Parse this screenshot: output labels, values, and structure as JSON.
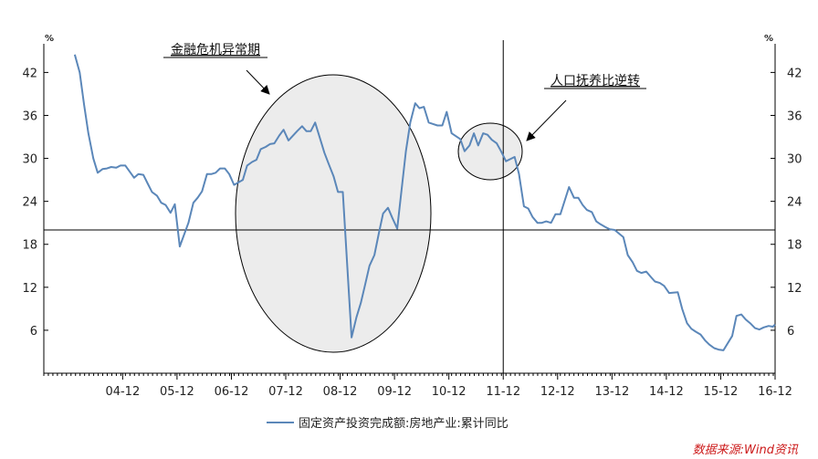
{
  "colors": {
    "series": "#5b87b9",
    "ellipse_fill": "#ececec",
    "axis": "#000000",
    "source": "#cc1a1a"
  },
  "chart_data": {
    "type": "line",
    "y_unit_left": "%",
    "y_unit_right": "%",
    "ylim": [
      0,
      46
    ],
    "yticks": [
      6,
      12,
      18,
      24,
      30,
      36,
      42
    ],
    "xlim": [
      2003.5,
      2016.95
    ],
    "x_tick_labels": [
      "04-12",
      "05-12",
      "06-12",
      "07-12",
      "08-12",
      "09-12",
      "10-12",
      "11-12",
      "12-12",
      "13-12",
      "14-12",
      "15-12",
      "16-12"
    ],
    "x_tick_positions": [
      2004.95,
      2005.95,
      2006.95,
      2007.95,
      2008.95,
      2009.95,
      2010.95,
      2011.95,
      2012.95,
      2013.95,
      2014.95,
      2015.95,
      2016.95
    ],
    "reference_lines": {
      "horizontal_y": 20,
      "vertical_x": 2011.95
    },
    "series": [
      {
        "name": "固定资产投资完成额:房地产业:累计同比",
        "points": [
          [
            2004.07,
            44.5
          ],
          [
            2004.16,
            42.0
          ],
          [
            2004.24,
            37.5
          ],
          [
            2004.32,
            33.5
          ],
          [
            2004.41,
            30.0
          ],
          [
            2004.49,
            28.0
          ],
          [
            2004.58,
            28.5
          ],
          [
            2004.66,
            28.6
          ],
          [
            2004.74,
            28.8
          ],
          [
            2004.83,
            28.7
          ],
          [
            2004.91,
            29.0
          ],
          [
            2005.0,
            29.0
          ],
          [
            2005.16,
            27.3
          ],
          [
            2005.24,
            27.8
          ],
          [
            2005.33,
            27.7
          ],
          [
            2005.41,
            26.5
          ],
          [
            2005.49,
            25.3
          ],
          [
            2005.58,
            24.8
          ],
          [
            2005.66,
            23.8
          ],
          [
            2005.74,
            23.5
          ],
          [
            2005.83,
            22.4
          ],
          [
            2005.91,
            23.6
          ],
          [
            2006.0,
            17.7
          ],
          [
            2006.16,
            21.0
          ],
          [
            2006.25,
            23.8
          ],
          [
            2006.33,
            24.5
          ],
          [
            2006.41,
            25.4
          ],
          [
            2006.5,
            27.8
          ],
          [
            2006.58,
            27.8
          ],
          [
            2006.66,
            28.0
          ],
          [
            2006.74,
            28.6
          ],
          [
            2006.83,
            28.6
          ],
          [
            2006.91,
            27.8
          ],
          [
            2007.0,
            26.3
          ],
          [
            2007.16,
            27.0
          ],
          [
            2007.24,
            29.0
          ],
          [
            2007.33,
            29.5
          ],
          [
            2007.41,
            29.8
          ],
          [
            2007.49,
            31.3
          ],
          [
            2007.58,
            31.6
          ],
          [
            2007.66,
            32.0
          ],
          [
            2007.74,
            32.1
          ],
          [
            2007.83,
            33.2
          ],
          [
            2007.91,
            34.0
          ],
          [
            2008.0,
            32.5
          ],
          [
            2008.16,
            33.8
          ],
          [
            2008.25,
            34.5
          ],
          [
            2008.33,
            33.8
          ],
          [
            2008.41,
            33.8
          ],
          [
            2008.49,
            35.0
          ],
          [
            2008.58,
            32.8
          ],
          [
            2008.66,
            30.8
          ],
          [
            2008.74,
            29.2
          ],
          [
            2008.83,
            27.5
          ],
          [
            2008.91,
            25.3
          ],
          [
            2009.0,
            25.3
          ],
          [
            2009.16,
            5.0
          ],
          [
            2009.25,
            7.8
          ],
          [
            2009.33,
            9.8
          ],
          [
            2009.41,
            12.4
          ],
          [
            2009.49,
            15.0
          ],
          [
            2009.58,
            16.5
          ],
          [
            2009.66,
            19.5
          ],
          [
            2009.74,
            22.3
          ],
          [
            2009.83,
            23.1
          ],
          [
            2009.91,
            21.7
          ],
          [
            2010.0,
            20.2
          ],
          [
            2010.16,
            31.0
          ],
          [
            2010.24,
            35.0
          ],
          [
            2010.33,
            37.7
          ],
          [
            2010.41,
            37.0
          ],
          [
            2010.49,
            37.2
          ],
          [
            2010.58,
            35.0
          ],
          [
            2010.66,
            34.8
          ],
          [
            2010.74,
            34.6
          ],
          [
            2010.83,
            34.6
          ],
          [
            2010.91,
            36.5
          ],
          [
            2011.0,
            33.5
          ],
          [
            2011.16,
            32.7
          ],
          [
            2011.24,
            31.0
          ],
          [
            2011.33,
            31.8
          ],
          [
            2011.41,
            33.5
          ],
          [
            2011.49,
            31.8
          ],
          [
            2011.58,
            33.5
          ],
          [
            2011.66,
            33.3
          ],
          [
            2011.74,
            32.6
          ],
          [
            2011.83,
            32.1
          ],
          [
            2011.91,
            31.0
          ],
          [
            2012.0,
            29.6
          ],
          [
            2012.16,
            30.2
          ],
          [
            2012.24,
            27.8
          ],
          [
            2012.33,
            23.3
          ],
          [
            2012.41,
            23.0
          ],
          [
            2012.49,
            21.8
          ],
          [
            2012.58,
            21.0
          ],
          [
            2012.66,
            21.0
          ],
          [
            2012.74,
            21.2
          ],
          [
            2012.83,
            21.0
          ],
          [
            2012.91,
            22.2
          ],
          [
            2013.0,
            22.2
          ],
          [
            2013.16,
            26.0
          ],
          [
            2013.25,
            24.5
          ],
          [
            2013.33,
            24.5
          ],
          [
            2013.41,
            23.5
          ],
          [
            2013.49,
            22.8
          ],
          [
            2013.58,
            22.5
          ],
          [
            2013.66,
            21.2
          ],
          [
            2013.74,
            20.8
          ],
          [
            2013.83,
            20.4
          ],
          [
            2013.91,
            20.1
          ],
          [
            2014.0,
            20.0
          ],
          [
            2014.16,
            19.0
          ],
          [
            2014.24,
            16.5
          ],
          [
            2014.33,
            15.5
          ],
          [
            2014.41,
            14.3
          ],
          [
            2014.49,
            14.0
          ],
          [
            2014.58,
            14.2
          ],
          [
            2014.66,
            13.5
          ],
          [
            2014.74,
            12.8
          ],
          [
            2014.83,
            12.6
          ],
          [
            2014.91,
            12.2
          ],
          [
            2015.0,
            11.2
          ],
          [
            2015.16,
            11.3
          ],
          [
            2015.24,
            9.0
          ],
          [
            2015.33,
            7.0
          ],
          [
            2015.41,
            6.2
          ],
          [
            2015.49,
            5.8
          ],
          [
            2015.58,
            5.4
          ],
          [
            2015.66,
            4.6
          ],
          [
            2015.74,
            4.0
          ],
          [
            2015.83,
            3.5
          ],
          [
            2015.91,
            3.3
          ],
          [
            2016.0,
            3.2
          ],
          [
            2016.16,
            5.2
          ],
          [
            2016.24,
            8.0
          ],
          [
            2016.33,
            8.2
          ],
          [
            2016.41,
            7.5
          ],
          [
            2016.49,
            7.0
          ],
          [
            2016.58,
            6.3
          ],
          [
            2016.66,
            6.1
          ],
          [
            2016.74,
            6.4
          ],
          [
            2016.83,
            6.6
          ],
          [
            2016.91,
            6.5
          ],
          [
            2016.95,
            6.8
          ]
        ]
      }
    ],
    "annotations": [
      {
        "id": "crisis",
        "text": "金融危机异常期"
      },
      {
        "id": "population",
        "text": "人口抚养比逆转"
      }
    ],
    "legend_position": "bottom-center",
    "source_note": "数据来源:Wind资讯"
  }
}
